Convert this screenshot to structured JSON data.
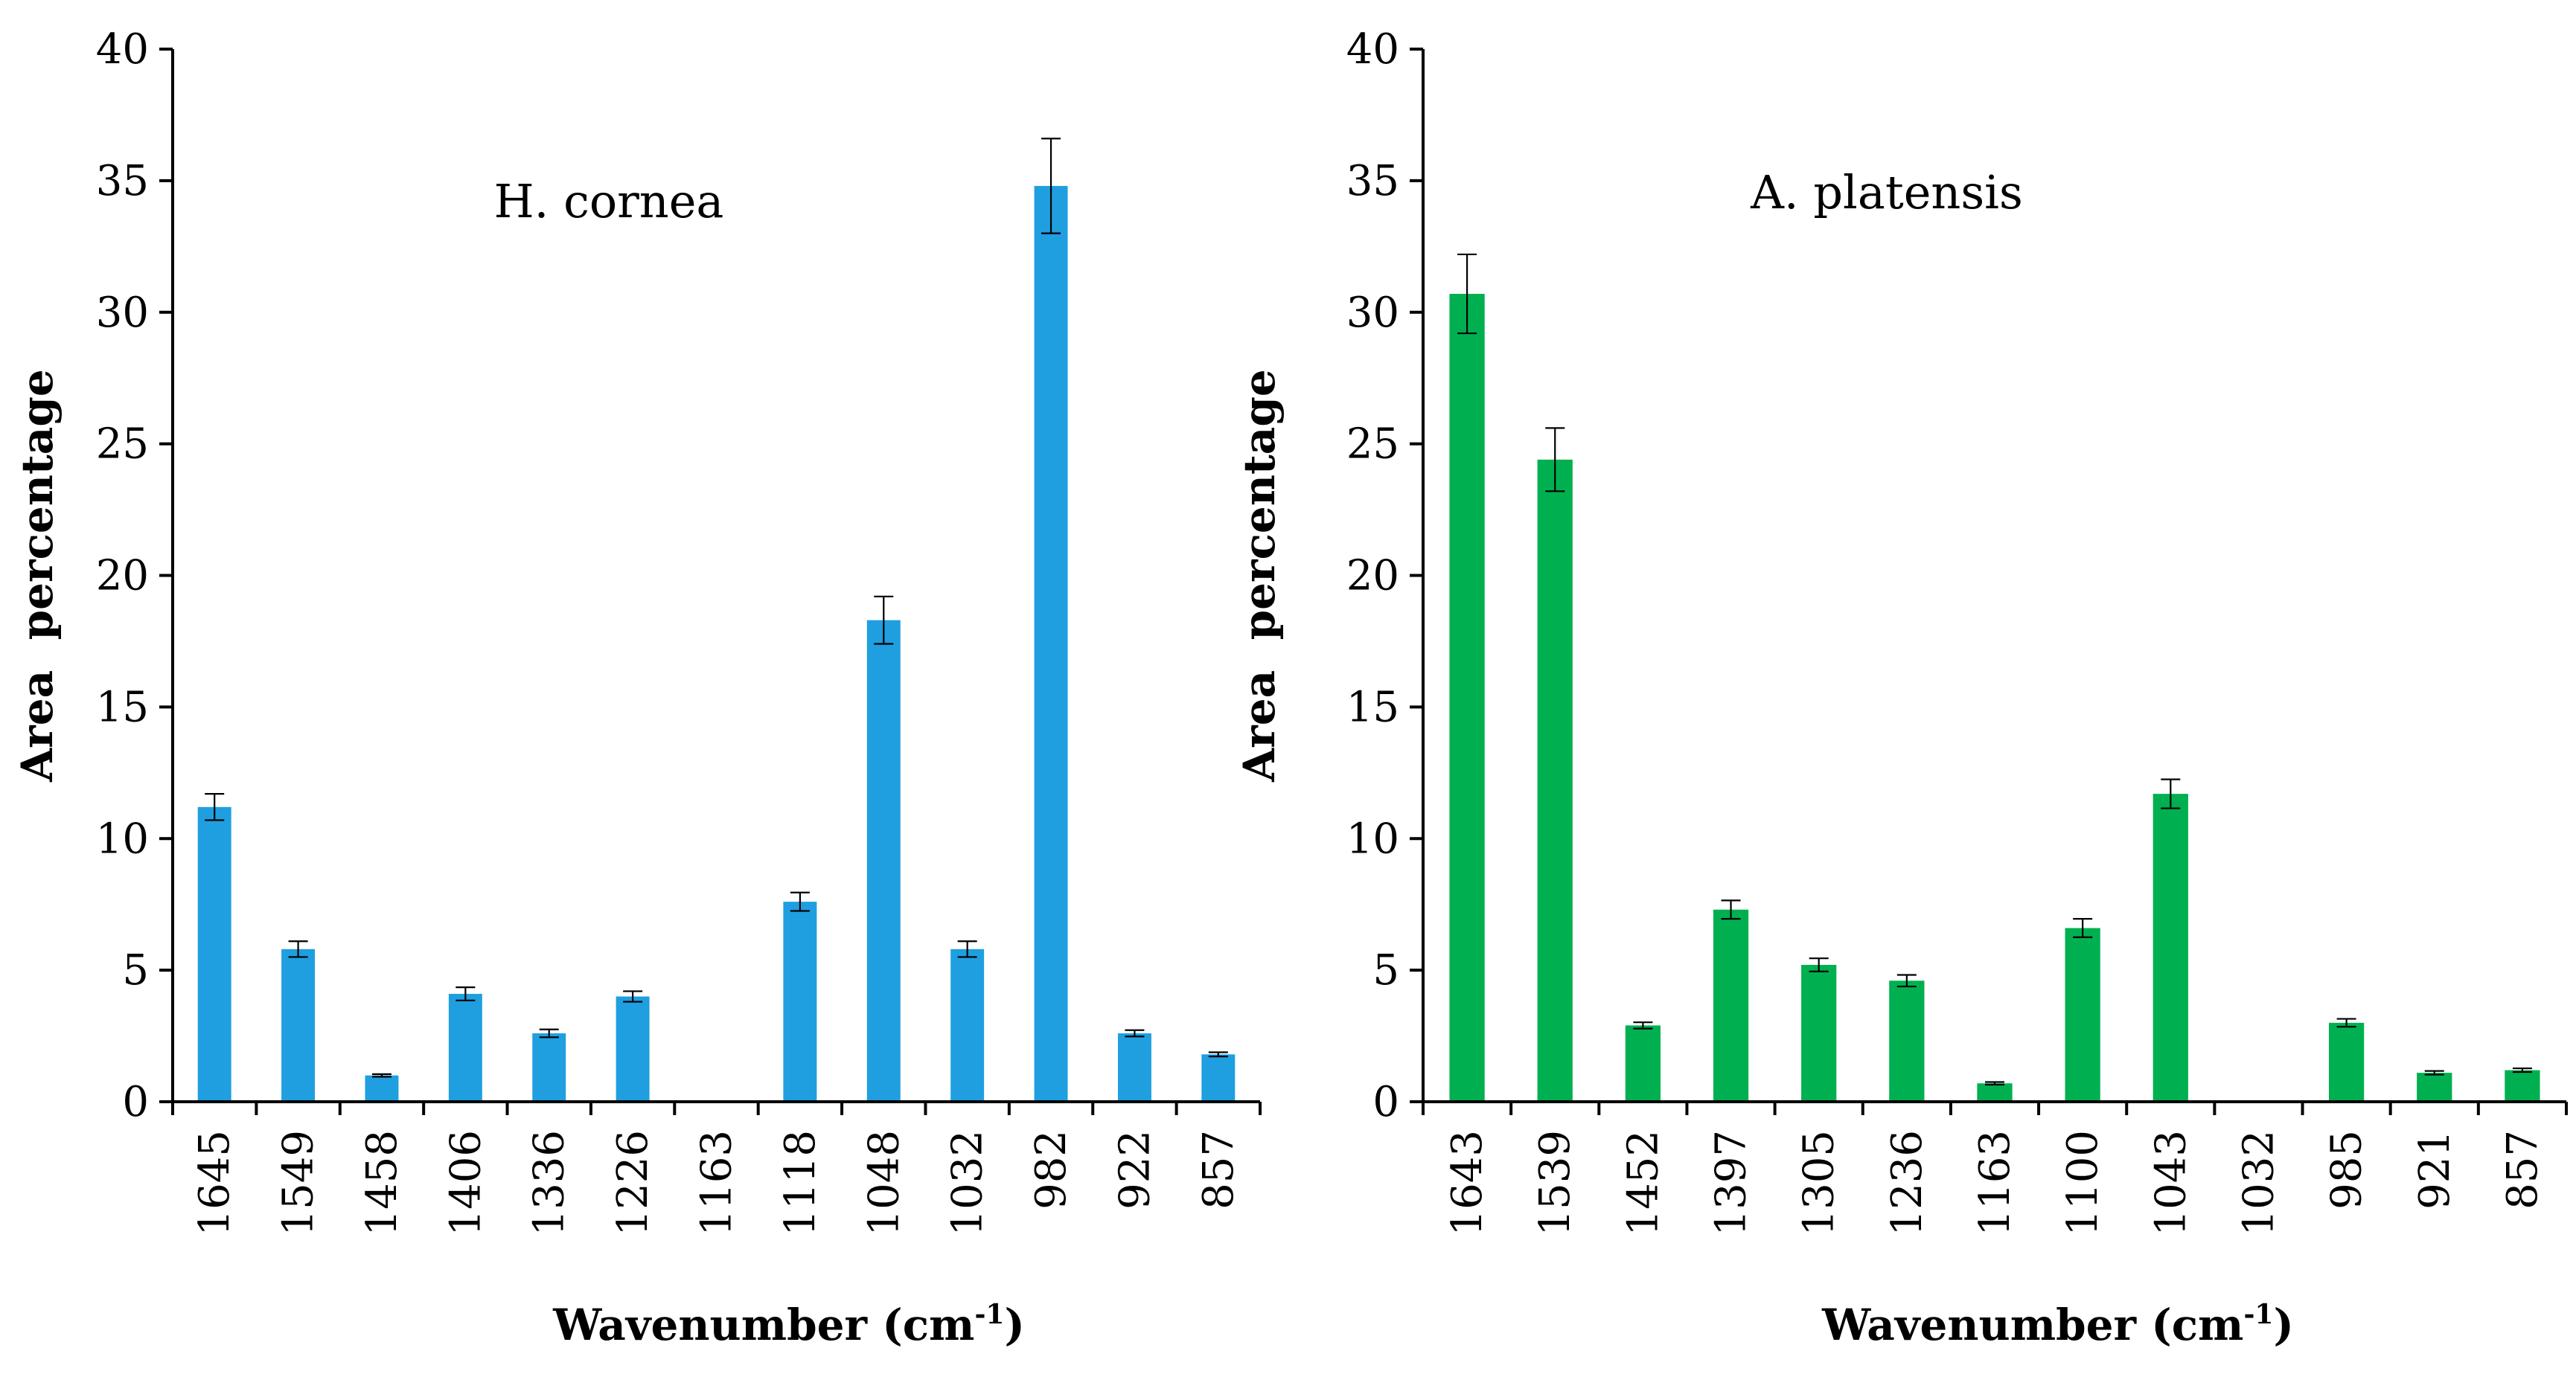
{
  "chart_data": [
    {
      "type": "bar",
      "annotation": "H. cornea",
      "xlabel": "Wavenumber (cm",
      "xlabel_sup": "-1",
      "xlabel_close": ")",
      "ylabel": "Area  percentage",
      "ylim": [
        0,
        40
      ],
      "yticks": [
        "0",
        "5",
        "10",
        "15",
        "20",
        "25",
        "30",
        "35",
        "40"
      ],
      "color": "#1f9fe0",
      "categories": [
        "1645",
        "1549",
        "1458",
        "1406",
        "1336",
        "1226",
        "1163",
        "1118",
        "1048",
        "1032",
        "982",
        "922",
        "857"
      ],
      "values": [
        11.2,
        5.8,
        1.0,
        4.1,
        2.6,
        4.0,
        0,
        7.6,
        18.3,
        5.8,
        34.8,
        2.6,
        1.8
      ],
      "errors": [
        0.5,
        0.3,
        0.05,
        0.25,
        0.15,
        0.2,
        0,
        0.35,
        0.9,
        0.3,
        1.8,
        0.12,
        0.08
      ]
    },
    {
      "type": "bar",
      "annotation": "A. platensis",
      "xlabel": "Wavenumber (cm",
      "xlabel_sup": "-1",
      "xlabel_close": ")",
      "ylabel": "Area  percentage",
      "ylim": [
        0,
        40
      ],
      "yticks": [
        "0",
        "5",
        "10",
        "15",
        "20",
        "25",
        "30",
        "35",
        "40"
      ],
      "color": "#00b050",
      "categories": [
        "1643",
        "1539",
        "1452",
        "1397",
        "1305",
        "1236",
        "1163",
        "1100",
        "1043",
        "1032",
        "985",
        "921",
        "857"
      ],
      "values": [
        30.7,
        24.4,
        2.9,
        7.3,
        5.2,
        4.6,
        0.7,
        6.6,
        11.7,
        0,
        3.0,
        1.1,
        1.2
      ],
      "errors": [
        1.5,
        1.2,
        0.12,
        0.35,
        0.25,
        0.22,
        0.05,
        0.35,
        0.55,
        0,
        0.15,
        0.07,
        0.07
      ]
    }
  ]
}
